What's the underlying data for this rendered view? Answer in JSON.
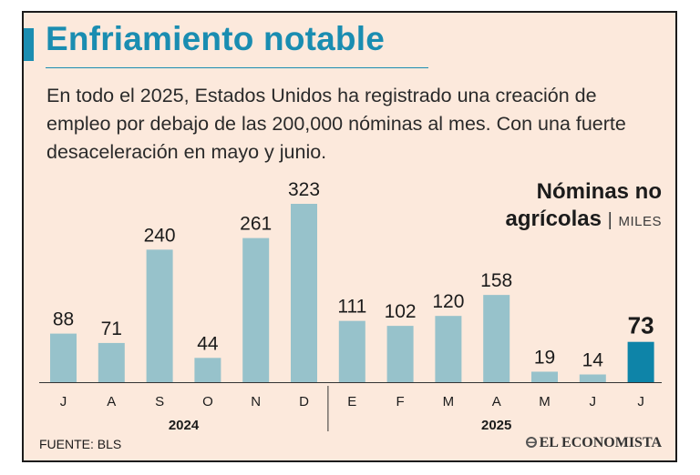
{
  "header": {
    "title": "Enfriamiento notable",
    "subtitle": "En todo el 2025, Estados Unidos ha registrado una creación de empleo por debajo de las 200,000 nóminas al mes. Con una fuerte desaceleración en mayo y junio."
  },
  "legend": {
    "line1": "Nóminas no",
    "line2": "agrícolas",
    "separator": "|",
    "unit": "MILES"
  },
  "footer": {
    "source": "FUENTE: BLS",
    "brand": "EL ECONOMISTA"
  },
  "colors": {
    "bar": "#97c2cb",
    "bar_highlight": "#0e84a8",
    "title": "#1a8db1",
    "background": "#fce9dc"
  },
  "chart_data": {
    "type": "bar",
    "categories": [
      "J",
      "A",
      "S",
      "O",
      "N",
      "D",
      "E",
      "F",
      "M",
      "A",
      "M",
      "J",
      "J"
    ],
    "values": [
      88,
      71,
      240,
      44,
      261,
      323,
      111,
      102,
      120,
      158,
      19,
      14,
      73
    ],
    "value_labels": [
      "88",
      "71",
      "240",
      "44",
      "261",
      "323",
      "111",
      "102",
      "120",
      "158",
      "19",
      "14",
      "73"
    ],
    "groups": [
      {
        "label": "2024",
        "count": 6
      },
      {
        "label": "2025",
        "count": 7
      }
    ],
    "highlight_index": 12,
    "title": "Enfriamiento notable",
    "xlabel": "",
    "ylabel": "",
    "ylim": [
      0,
      323
    ],
    "grid": false,
    "legend_position": "top-right"
  }
}
